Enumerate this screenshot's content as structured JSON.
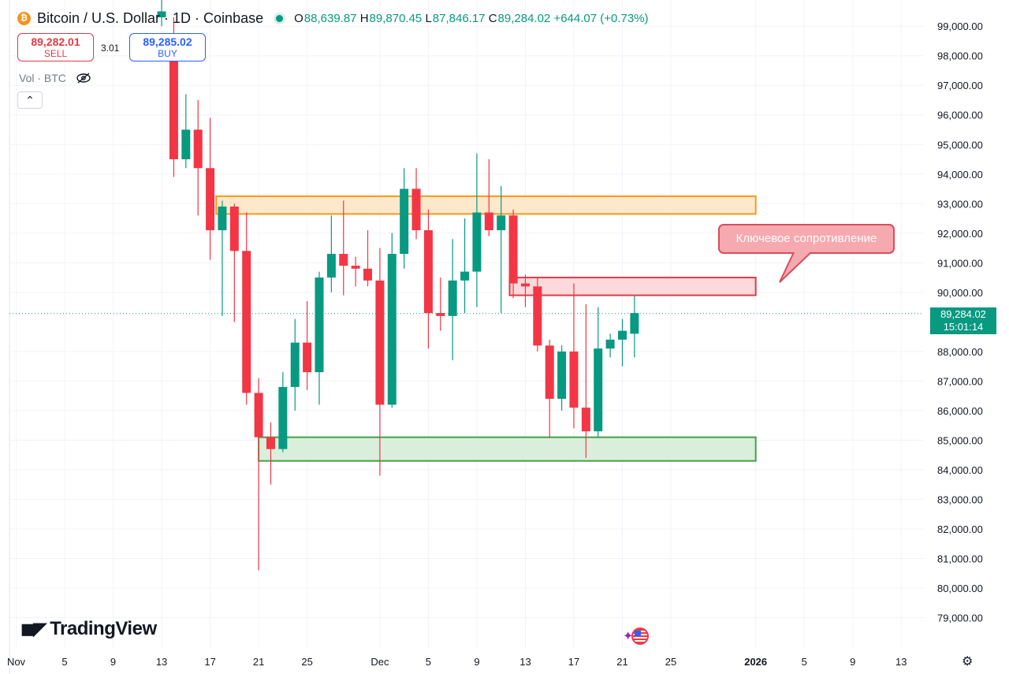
{
  "header": {
    "symbol_title": "Bitcoin / U.S. Dollar · 1D · Coinbase",
    "open_label": "O",
    "open": "88,639.87",
    "high_label": "H",
    "high": "89,870.45",
    "low_label": "L",
    "low": "87,846.17",
    "close_label": "C",
    "close": "89,284.02",
    "change": "+644.07 (+0.73%)"
  },
  "trade": {
    "sell_price": "89,282.01",
    "sell_label": "SELL",
    "spread": "3.01",
    "buy_price": "89,285.02",
    "buy_label": "BUY"
  },
  "volume_label": "Vol · BTC",
  "branding": {
    "name": "TradingView"
  },
  "last_price": {
    "value": "89,284.02",
    "countdown": "15:01:14"
  },
  "annotation": {
    "text": "Ключевое сопротивление"
  },
  "icons": {
    "eye": "eye-off-icon",
    "collapse": "chevron-up-icon",
    "settings": "gear-icon",
    "logo": "tradingview-logo-icon"
  },
  "colors": {
    "up": "#089981",
    "down": "#f23645",
    "resistance": "#f7a1a9",
    "supply": "#fcd9ad",
    "support": "#b9e0bf"
  },
  "chart_data": {
    "type": "candlestick",
    "y_ticks": [
      "99,000.00",
      "98,000.00",
      "97,000.00",
      "96,000.00",
      "95,000.00",
      "94,000.00",
      "93,000.00",
      "92,000.00",
      "91,000.00",
      "90,000.00",
      "88,000.00",
      "87,000.00",
      "86,000.00",
      "85,000.00",
      "84,000.00",
      "83,000.00",
      "82,000.00",
      "81,000.00",
      "80,000.00",
      "79,000.00"
    ],
    "y_values": [
      99000,
      98000,
      97000,
      96000,
      95000,
      94000,
      93000,
      92000,
      91000,
      90000,
      88000,
      87000,
      86000,
      85000,
      84000,
      83000,
      82000,
      81000,
      80000,
      79000
    ],
    "ylim": [
      78200,
      99600
    ],
    "x_ticks": [
      {
        "label": "Nov",
        "day": 1
      },
      {
        "label": "5",
        "day": 5
      },
      {
        "label": "9",
        "day": 9
      },
      {
        "label": "13",
        "day": 13
      },
      {
        "label": "17",
        "day": 17
      },
      {
        "label": "21",
        "day": 21
      },
      {
        "label": "25",
        "day": 25
      },
      {
        "label": "Dec",
        "day": 31
      },
      {
        "label": "5",
        "day": 35
      },
      {
        "label": "9",
        "day": 39
      },
      {
        "label": "13",
        "day": 43
      },
      {
        "label": "17",
        "day": 47
      },
      {
        "label": "21",
        "day": 51
      },
      {
        "label": "25",
        "day": 55
      },
      {
        "label": "2026",
        "day": 62,
        "bold": true
      },
      {
        "label": "5",
        "day": 66
      },
      {
        "label": "9",
        "day": 70
      },
      {
        "label": "13",
        "day": 74
      }
    ],
    "x_range": [
      1,
      77
    ],
    "candles": [
      {
        "d": 13,
        "o": 99300,
        "h": 99900,
        "l": 99000,
        "c": 99500
      },
      {
        "d": 14,
        "o": 98000,
        "h": 99300,
        "l": 93900,
        "c": 94500
      },
      {
        "d": 15,
        "o": 94500,
        "h": 96700,
        "l": 94200,
        "c": 95500
      },
      {
        "d": 16,
        "o": 95500,
        "h": 96500,
        "l": 92600,
        "c": 94200
      },
      {
        "d": 17,
        "o": 94200,
        "h": 95900,
        "l": 91100,
        "c": 92100
      },
      {
        "d": 18,
        "o": 92100,
        "h": 93100,
        "l": 89200,
        "c": 92900
      },
      {
        "d": 19,
        "o": 92900,
        "h": 93000,
        "l": 89000,
        "c": 91400
      },
      {
        "d": 20,
        "o": 91400,
        "h": 92700,
        "l": 86200,
        "c": 86600
      },
      {
        "d": 21,
        "o": 86600,
        "h": 87100,
        "l": 80600,
        "c": 85100
      },
      {
        "d": 22,
        "o": 85100,
        "h": 85600,
        "l": 83500,
        "c": 84700
      },
      {
        "d": 23,
        "o": 84700,
        "h": 87300,
        "l": 84600,
        "c": 86800
      },
      {
        "d": 24,
        "o": 86800,
        "h": 89100,
        "l": 86000,
        "c": 88300
      },
      {
        "d": 25,
        "o": 88300,
        "h": 89700,
        "l": 86700,
        "c": 87300
      },
      {
        "d": 26,
        "o": 87300,
        "h": 90700,
        "l": 86200,
        "c": 90500
      },
      {
        "d": 27,
        "o": 90500,
        "h": 92600,
        "l": 90000,
        "c": 91300
      },
      {
        "d": 28,
        "o": 91300,
        "h": 93100,
        "l": 89900,
        "c": 90900
      },
      {
        "d": 29,
        "o": 90900,
        "h": 91200,
        "l": 90200,
        "c": 90800
      },
      {
        "d": 30,
        "o": 90800,
        "h": 92100,
        "l": 90200,
        "c": 90400
      },
      {
        "d": 31,
        "o": 90400,
        "h": 91500,
        "l": 83800,
        "c": 86200
      },
      {
        "d": 32,
        "o": 86200,
        "h": 92000,
        "l": 86100,
        "c": 91300
      },
      {
        "d": 33,
        "o": 91300,
        "h": 94200,
        "l": 90800,
        "c": 93500
      },
      {
        "d": 34,
        "o": 93500,
        "h": 94200,
        "l": 91800,
        "c": 92100
      },
      {
        "d": 35,
        "o": 92100,
        "h": 92800,
        "l": 88100,
        "c": 89300
      },
      {
        "d": 36,
        "o": 89300,
        "h": 90500,
        "l": 88700,
        "c": 89200
      },
      {
        "d": 37,
        "o": 89200,
        "h": 91800,
        "l": 87700,
        "c": 90400
      },
      {
        "d": 38,
        "o": 90400,
        "h": 92500,
        "l": 89300,
        "c": 90700
      },
      {
        "d": 39,
        "o": 90700,
        "h": 94700,
        "l": 89500,
        "c": 92700
      },
      {
        "d": 40,
        "o": 92700,
        "h": 94500,
        "l": 91900,
        "c": 92100
      },
      {
        "d": 41,
        "o": 92100,
        "h": 93600,
        "l": 89300,
        "c": 92600
      },
      {
        "d": 42,
        "o": 92600,
        "h": 92800,
        "l": 89800,
        "c": 90300
      },
      {
        "d": 43,
        "o": 90300,
        "h": 90600,
        "l": 89500,
        "c": 90200
      },
      {
        "d": 44,
        "o": 90200,
        "h": 90500,
        "l": 88000,
        "c": 88200
      },
      {
        "d": 45,
        "o": 88200,
        "h": 88400,
        "l": 85100,
        "c": 86400
      },
      {
        "d": 46,
        "o": 86400,
        "h": 88200,
        "l": 86000,
        "c": 88000
      },
      {
        "d": 47,
        "o": 88000,
        "h": 90300,
        "l": 85400,
        "c": 86100
      },
      {
        "d": 48,
        "o": 86100,
        "h": 89600,
        "l": 84400,
        "c": 85300
      },
      {
        "d": 49,
        "o": 85300,
        "h": 89500,
        "l": 85100,
        "c": 88100
      },
      {
        "d": 50,
        "o": 88100,
        "h": 88600,
        "l": 87800,
        "c": 88400
      },
      {
        "d": 51,
        "o": 88400,
        "h": 89100,
        "l": 87500,
        "c": 88700
      },
      {
        "d": 52,
        "o": 88600,
        "h": 89900,
        "l": 87800,
        "c": 89300
      }
    ],
    "zones": [
      {
        "name": "supply",
        "from_day": 17.5,
        "to_day": 62,
        "low": 92650,
        "high": 93250
      },
      {
        "name": "resistance",
        "from_day": 41.7,
        "to_day": 62,
        "low": 89900,
        "high": 90500
      },
      {
        "name": "support",
        "from_day": 21,
        "to_day": 62,
        "low": 84300,
        "high": 85100
      }
    ],
    "current_price": 89284.02,
    "grid": true
  }
}
